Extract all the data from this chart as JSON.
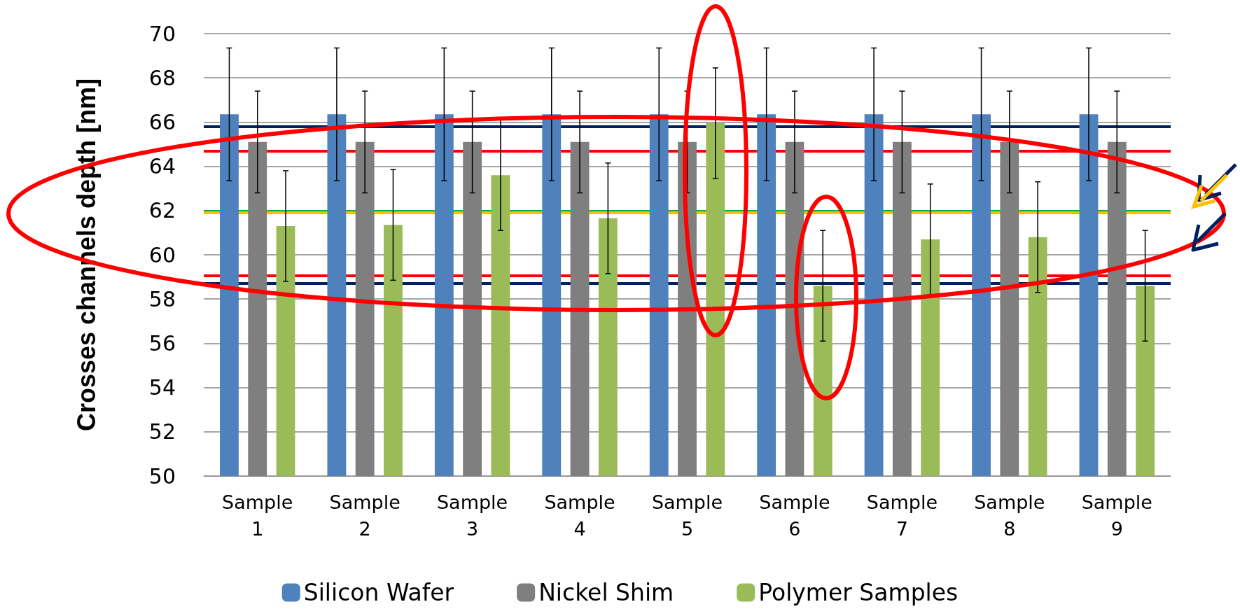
{
  "chart_data": {
    "type": "bar",
    "ylabel": "Crosses channels depth [nm]",
    "categories": [
      "Sample\n1",
      "Sample\n2",
      "Sample\n3",
      "Sample\n4",
      "Sample\n5",
      "Sample\n6",
      "Sample\n7",
      "Sample\n8",
      "Sample\n9"
    ],
    "series": [
      {
        "name": "Silicon Wafer",
        "color": "#4f81bd",
        "values": [
          66.35,
          66.35,
          66.35,
          66.35,
          66.35,
          66.35,
          66.35,
          66.35,
          66.35
        ],
        "errors": [
          3,
          3,
          3,
          3,
          3,
          3,
          3,
          3,
          3
        ]
      },
      {
        "name": "Nickel Shim",
        "color": "#7f7f7f",
        "values": [
          65.1,
          65.1,
          65.1,
          65.1,
          65.1,
          65.1,
          65.1,
          65.1,
          65.1
        ],
        "errors": [
          2.3,
          2.3,
          2.3,
          2.3,
          2.3,
          2.3,
          2.3,
          2.3,
          2.3
        ]
      },
      {
        "name": "Polymer Samples",
        "color": "#9bbb59",
        "values": [
          61.3,
          61.35,
          63.6,
          61.65,
          65.95,
          58.6,
          60.7,
          60.8,
          58.6
        ],
        "errors": [
          2.5,
          2.5,
          2.5,
          2.5,
          2.5,
          2.5,
          2.5,
          2.5,
          2.5
        ]
      }
    ],
    "ylim": [
      50,
      70
    ],
    "yticks": [
      50,
      52,
      54,
      56,
      58,
      60,
      62,
      64,
      66,
      68,
      70
    ],
    "grid": "y",
    "legend": "bottom",
    "ref_lines": [
      {
        "axis": "y",
        "value": 62,
        "color": "#00b050"
      },
      {
        "axis": "y",
        "value": 65.8,
        "color": "#002060"
      },
      {
        "axis": "y",
        "value": 58.7,
        "color": "#002060"
      },
      {
        "axis": "y",
        "value": 64.7,
        "color": "#ff0000"
      },
      {
        "axis": "y",
        "value": 59.05,
        "color": "#ff0000"
      },
      {
        "axis": "y",
        "value": 61.9,
        "color": "#ffc000"
      }
    ]
  }
}
